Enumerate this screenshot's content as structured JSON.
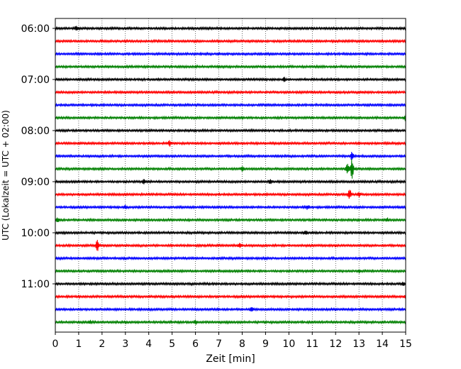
{
  "chart_data": {
    "type": "line",
    "title": "",
    "xlabel": "Zeit  [min]",
    "ylabel": "UTC (Lokalzeit = UTC + 02:00)",
    "xlim": [
      0,
      15
    ],
    "x_ticks": [
      "0",
      "1",
      "2",
      "3",
      "4",
      "5",
      "6",
      "7",
      "8",
      "9",
      "10",
      "11",
      "12",
      "13",
      "14",
      "15"
    ],
    "y_ticks": [
      {
        "label": "06:00",
        "row": 0
      },
      {
        "label": "07:00",
        "row": 4
      },
      {
        "label": "08:00",
        "row": 8
      },
      {
        "label": "09:00",
        "row": 12
      },
      {
        "label": "10:00",
        "row": 16
      },
      {
        "label": "11:00",
        "row": 20
      }
    ],
    "grid": "vertical dotted at each minute",
    "row_interval_minutes": 15,
    "row_colors": [
      "#000000",
      "#ff0000",
      "#0000ff",
      "#008000"
    ],
    "traces": [
      {
        "start": "06:00",
        "events": [
          {
            "t": 0.9,
            "amp": 0.3
          }
        ]
      },
      {
        "start": "06:15",
        "events": []
      },
      {
        "start": "06:30",
        "events": []
      },
      {
        "start": "06:45",
        "events": []
      },
      {
        "start": "07:00",
        "events": [
          {
            "t": 9.8,
            "amp": 0.3
          }
        ]
      },
      {
        "start": "07:15",
        "events": []
      },
      {
        "start": "07:30",
        "events": []
      },
      {
        "start": "07:45",
        "events": [
          {
            "t": 15.0,
            "amp": 0.5
          }
        ]
      },
      {
        "start": "08:00",
        "events": []
      },
      {
        "start": "08:15",
        "events": [
          {
            "t": 4.9,
            "amp": 0.4
          }
        ]
      },
      {
        "start": "08:30",
        "events": [
          {
            "t": 12.7,
            "amp": 0.6
          }
        ]
      },
      {
        "start": "08:45",
        "events": [
          {
            "t": 8.0,
            "amp": 0.3
          },
          {
            "t": 12.7,
            "amp": 1.5
          },
          {
            "t": 12.5,
            "amp": 0.7
          }
        ]
      },
      {
        "start": "09:00",
        "events": [
          {
            "t": 3.8,
            "amp": 0.3
          },
          {
            "t": 9.2,
            "amp": 0.3
          }
        ]
      },
      {
        "start": "09:15",
        "events": [
          {
            "t": 12.6,
            "amp": 0.7
          },
          {
            "t": 13.0,
            "amp": 0.3
          }
        ]
      },
      {
        "start": "09:30",
        "events": [
          {
            "t": 3.0,
            "amp": 0.3
          },
          {
            "t": 10.8,
            "amp": 0.3
          }
        ]
      },
      {
        "start": "09:45",
        "events": [
          {
            "t": 0.1,
            "amp": 0.4
          },
          {
            "t": 14.2,
            "amp": 0.3
          }
        ]
      },
      {
        "start": "10:00",
        "events": [
          {
            "t": 10.7,
            "amp": 0.3
          }
        ]
      },
      {
        "start": "10:15",
        "events": [
          {
            "t": 1.8,
            "amp": 0.8
          },
          {
            "t": 7.9,
            "amp": 0.4
          }
        ]
      },
      {
        "start": "10:30",
        "events": []
      },
      {
        "start": "10:45",
        "events": [
          {
            "t": 13.0,
            "amp": 0.2
          }
        ]
      },
      {
        "start": "11:00",
        "events": [
          {
            "t": 14.9,
            "amp": 0.3
          }
        ]
      },
      {
        "start": "11:15",
        "events": [
          {
            "t": 15.0,
            "amp": 0.3
          }
        ]
      },
      {
        "start": "11:30",
        "events": [
          {
            "t": 8.4,
            "amp": 0.3
          }
        ]
      },
      {
        "start": "11:45",
        "events": [
          {
            "t": 1.5,
            "amp": 0.3
          },
          {
            "t": 6.0,
            "amp": 0.3
          }
        ]
      }
    ]
  }
}
